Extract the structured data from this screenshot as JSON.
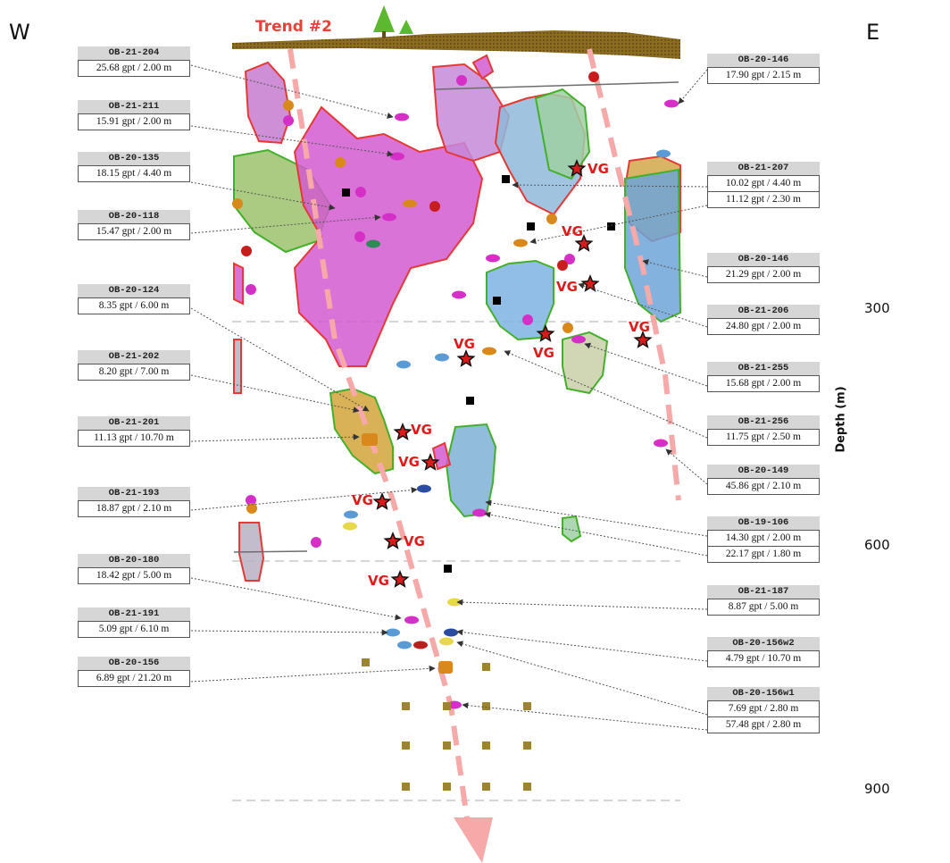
{
  "directions": {
    "west": "W",
    "east": "E"
  },
  "trend_label": "Trend #2",
  "depth_axis": {
    "title": "Depth (m)",
    "ticks": [
      "300",
      "600",
      "900"
    ]
  },
  "vg_label": "VG",
  "left_labels": [
    {
      "hole": "OB-21-204",
      "values": [
        "25.68 gpt / 2.00 m"
      ]
    },
    {
      "hole": "OB-21-211",
      "values": [
        "15.91 gpt / 2.00 m"
      ]
    },
    {
      "hole": "OB-20-135",
      "values": [
        "18.15 gpt / 4.40 m"
      ]
    },
    {
      "hole": "OB-20-118",
      "values": [
        "15.47 gpt / 2.00 m"
      ]
    },
    {
      "hole": "OB-20-124",
      "values": [
        "8.35 gpt / 6.00 m"
      ]
    },
    {
      "hole": "OB-21-202",
      "values": [
        "8.20 gpt / 7.00 m"
      ]
    },
    {
      "hole": "OB-21-201",
      "values": [
        "11.13 gpt / 10.70 m"
      ]
    },
    {
      "hole": "OB-21-193",
      "values": [
        "18.87 gpt / 2.10 m"
      ]
    },
    {
      "hole": "OB-20-180",
      "values": [
        "18.42 gpt / 5.00 m"
      ]
    },
    {
      "hole": "OB-21-191",
      "values": [
        "5.09 gpt / 6.10 m"
      ]
    },
    {
      "hole": "OB-20-156",
      "values": [
        "6.89 gpt / 21.20 m"
      ]
    }
  ],
  "right_labels": [
    {
      "hole": "OB-20-146",
      "values": [
        "17.90 gpt / 2.15 m"
      ]
    },
    {
      "hole": "OB-21-207",
      "values": [
        "10.02 gpt / 4.40 m",
        "11.12 gpt / 2.30 m"
      ]
    },
    {
      "hole": "OB-20-146",
      "values": [
        "21.29 gpt / 2.00 m"
      ]
    },
    {
      "hole": "OB-21-206",
      "values": [
        "24.80 gpt / 2.00 m"
      ]
    },
    {
      "hole": "OB-21-255",
      "values": [
        "15.68 gpt / 2.00 m"
      ]
    },
    {
      "hole": "OB-21-256",
      "values": [
        "11.75 gpt / 2.50 m"
      ]
    },
    {
      "hole": "OB-20-149",
      "values": [
        "45.86 gpt / 2.10 m"
      ]
    },
    {
      "hole": "OB-19-106",
      "values": [
        "14.30 gpt / 2.00 m",
        "22.17 gpt / 1.80 m"
      ]
    },
    {
      "hole": "OB-21-187",
      "values": [
        "8.87 gpt / 5.00 m"
      ]
    },
    {
      "hole": "OB-20-156w2",
      "values": [
        "4.79 gpt / 10.70 m"
      ]
    },
    {
      "hole": "OB-20-156w1",
      "values": [
        "7.69 gpt / 2.80 m",
        "57.48 gpt / 2.80 m"
      ]
    }
  ],
  "colors": {
    "trend": "#f7a8a8",
    "trend_text": "#e8413a",
    "vg_text": "#e01a1a",
    "ground": "#8c6d1f",
    "tree": "#5cb82e",
    "outline_red": "#e53935",
    "outline_green": "#43b02a",
    "magenta": "#d62fc7",
    "yellow": "#e6d84a",
    "blue": "#5b9bd5",
    "orange": "#d9891c",
    "square_brown": "#9c8430"
  }
}
